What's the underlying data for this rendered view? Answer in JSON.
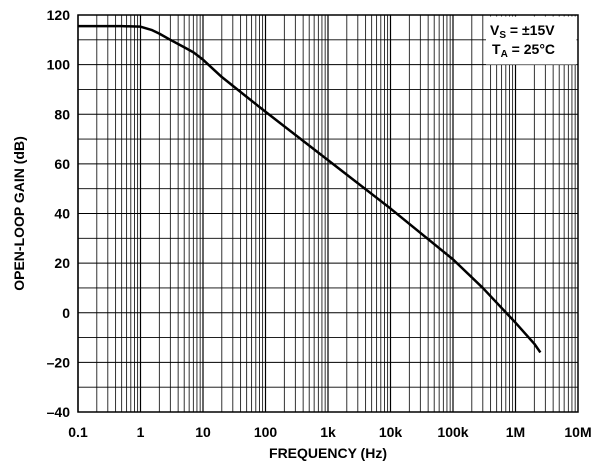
{
  "chart_data": {
    "type": "line",
    "title": "",
    "xlabel": "FREQUENCY (Hz)",
    "ylabel": "OPEN-LOOP GAIN (dB)",
    "x_scale": "log",
    "xlim": [
      0.1,
      10000000
    ],
    "ylim": [
      -40,
      120
    ],
    "x_ticks": [
      0.1,
      1,
      10,
      100,
      1000,
      10000,
      100000,
      1000000,
      10000000
    ],
    "x_tick_labels": [
      "0.1",
      "1",
      "10",
      "100",
      "1k",
      "10k",
      "100k",
      "1M",
      "10M"
    ],
    "y_ticks": [
      -40,
      -20,
      0,
      20,
      40,
      60,
      80,
      100,
      120
    ],
    "y_tick_labels": [
      "–40",
      "–20",
      "0",
      "20",
      "40",
      "60",
      "80",
      "100",
      "120"
    ],
    "grid": true,
    "annotation": {
      "line1_main": "V",
      "line1_sub": "S",
      "line1_rest": " = ±15V",
      "line2_main": "T",
      "line2_sub": "A",
      "line2_rest": " = 25°C",
      "placement": "top-right"
    },
    "series": [
      {
        "x": [
          0.1,
          0.5,
          1,
          1.5,
          2,
          3,
          5,
          7,
          10,
          20,
          50,
          100,
          1000,
          10000,
          100000,
          300000,
          1000000,
          2000000,
          2500000
        ],
        "y": [
          115.5,
          115.5,
          115.3,
          114,
          112.5,
          110,
          107,
          105,
          102,
          95,
          87,
          81,
          61.5,
          42,
          21.5,
          10,
          -4,
          -12.5,
          -16
        ]
      }
    ]
  }
}
